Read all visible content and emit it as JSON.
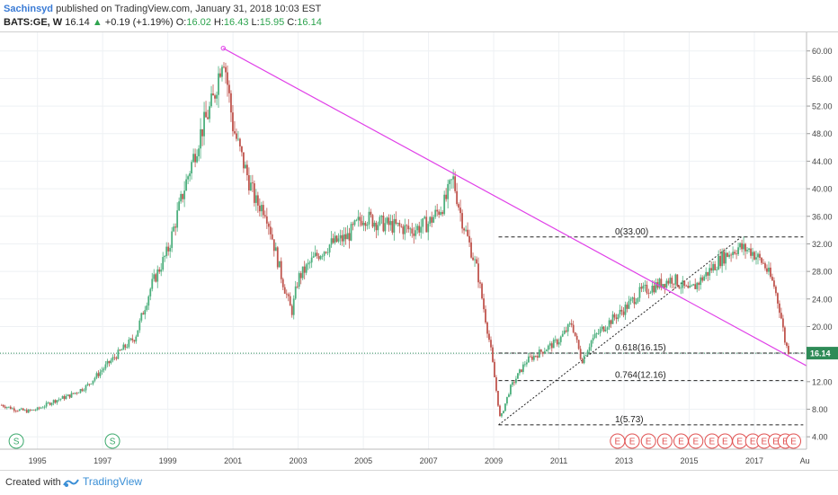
{
  "header": {
    "author": "Sachinsyd",
    "published_text": "published on TradingView.com, January 31, 2018 10:03 EST"
  },
  "legend": {
    "symbol": "BATS:GE, W",
    "last": "16.14",
    "change": "+0.19 (+1.19%)",
    "open_label": "O:",
    "open": "16.02",
    "high_label": "H:",
    "high": "16.43",
    "low_label": "L:",
    "low": "15.95",
    "close_label": "C:",
    "close": "16.14"
  },
  "footer": {
    "created_with": "Created with",
    "brand": "TradingView"
  },
  "colors": {
    "up_candle": "#4caf7d",
    "down_candle": "#c0564f",
    "trendline": "#e040e8",
    "price_line": "#2e8b57",
    "price_badge": "#2e8b57",
    "earnings": "#e05050",
    "split": "#3aa86b"
  },
  "chart_data": {
    "type": "candlestick",
    "x_ticks": [
      "1995",
      "1997",
      "1999",
      "2001",
      "2003",
      "2005",
      "2007",
      "2009",
      "2011",
      "2013",
      "2015",
      "2017",
      "Au"
    ],
    "y_ticks": [
      "4.00",
      "8.00",
      "12.00",
      "16.00",
      "20.00",
      "24.00",
      "28.00",
      "32.00",
      "36.00",
      "40.00",
      "44.00",
      "48.00",
      "52.00",
      "56.00",
      "60.00"
    ],
    "ylim": [
      2.2,
      62.7
    ],
    "xlim": [
      1993.85,
      2018.6
    ],
    "last_price": 16.14,
    "last_price_label": "16.14",
    "price_path": [
      [
        1993.9,
        8.6
      ],
      [
        1994.3,
        8.0
      ],
      [
        1994.7,
        7.7
      ],
      [
        1995.0,
        8.0
      ],
      [
        1995.5,
        9.2
      ],
      [
        1996.0,
        10.0
      ],
      [
        1996.5,
        11.3
      ],
      [
        1997.0,
        13.8
      ],
      [
        1997.5,
        16.2
      ],
      [
        1998.0,
        18.5
      ],
      [
        1998.5,
        26.0
      ],
      [
        1999.0,
        31.0
      ],
      [
        1999.5,
        40.0
      ],
      [
        2000.0,
        48.0
      ],
      [
        2000.4,
        53.0
      ],
      [
        2000.7,
        60.0
      ],
      [
        2001.0,
        49.0
      ],
      [
        2001.3,
        44.0
      ],
      [
        2001.7,
        38.0
      ],
      [
        2002.0,
        37.0
      ],
      [
        2002.5,
        27.0
      ],
      [
        2002.8,
        22.0
      ],
      [
        2003.0,
        27.0
      ],
      [
        2003.5,
        30.0
      ],
      [
        2004.0,
        32.0
      ],
      [
        2004.5,
        33.0
      ],
      [
        2005.0,
        36.0
      ],
      [
        2005.5,
        35.0
      ],
      [
        2006.0,
        34.5
      ],
      [
        2006.5,
        34.0
      ],
      [
        2007.0,
        35.0
      ],
      [
        2007.5,
        38.0
      ],
      [
        2007.75,
        41.5
      ],
      [
        2008.0,
        36.0
      ],
      [
        2008.5,
        28.0
      ],
      [
        2008.9,
        17.0
      ],
      [
        2009.2,
        6.5
      ],
      [
        2009.5,
        11.0
      ],
      [
        2010.0,
        15.0
      ],
      [
        2010.5,
        16.5
      ],
      [
        2011.0,
        18.0
      ],
      [
        2011.4,
        20.5
      ],
      [
        2011.7,
        15.0
      ],
      [
        2012.0,
        18.0
      ],
      [
        2012.5,
        20.5
      ],
      [
        2013.0,
        22.5
      ],
      [
        2013.5,
        25.0
      ],
      [
        2014.0,
        26.0
      ],
      [
        2014.5,
        27.0
      ],
      [
        2015.0,
        25.0
      ],
      [
        2015.5,
        27.5
      ],
      [
        2016.0,
        30.0
      ],
      [
        2016.5,
        31.5
      ],
      [
        2016.9,
        31.0
      ],
      [
        2017.3,
        29.0
      ],
      [
        2017.6,
        26.0
      ],
      [
        2017.8,
        22.0
      ],
      [
        2017.95,
        17.5
      ],
      [
        2018.08,
        16.14
      ]
    ],
    "trendline": {
      "x1": 2000.7,
      "y1": 60.4,
      "x2": 2018.6,
      "y2": 14.3,
      "color": "#e040e8"
    },
    "fib_levels": [
      {
        "ratio": "0",
        "value": 33.0,
        "label": "0(33.00)"
      },
      {
        "ratio": "0.618",
        "value": 16.15,
        "label": "0.618(16.15)"
      },
      {
        "ratio": "0.764",
        "value": 12.16,
        "label": "0.764(12.16)"
      },
      {
        "ratio": "1",
        "value": 5.73,
        "label": "1(5.73)"
      }
    ],
    "fib_range": {
      "x_start": 2009.15,
      "x_end": 2018.5,
      "from": [
        2009.15,
        5.73
      ],
      "to": [
        2016.6,
        33.0
      ]
    },
    "splits": [
      {
        "x": 1994.35,
        "label": "S"
      },
      {
        "x": 1997.3,
        "label": "S"
      }
    ],
    "earnings": [
      {
        "x": 2012.8,
        "label": "E"
      },
      {
        "x": 2013.25,
        "label": "E"
      },
      {
        "x": 2013.75,
        "label": "E"
      },
      {
        "x": 2014.25,
        "label": "E"
      },
      {
        "x": 2014.75,
        "label": "E"
      },
      {
        "x": 2015.2,
        "label": "E"
      },
      {
        "x": 2015.7,
        "label": "E"
      },
      {
        "x": 2016.1,
        "label": "E"
      },
      {
        "x": 2016.55,
        "label": "E"
      },
      {
        "x": 2016.95,
        "label": "E"
      },
      {
        "x": 2017.3,
        "label": "E"
      },
      {
        "x": 2017.65,
        "label": "E"
      },
      {
        "x": 2017.95,
        "label": "E"
      },
      {
        "x": 2018.2,
        "label": "E"
      }
    ]
  }
}
